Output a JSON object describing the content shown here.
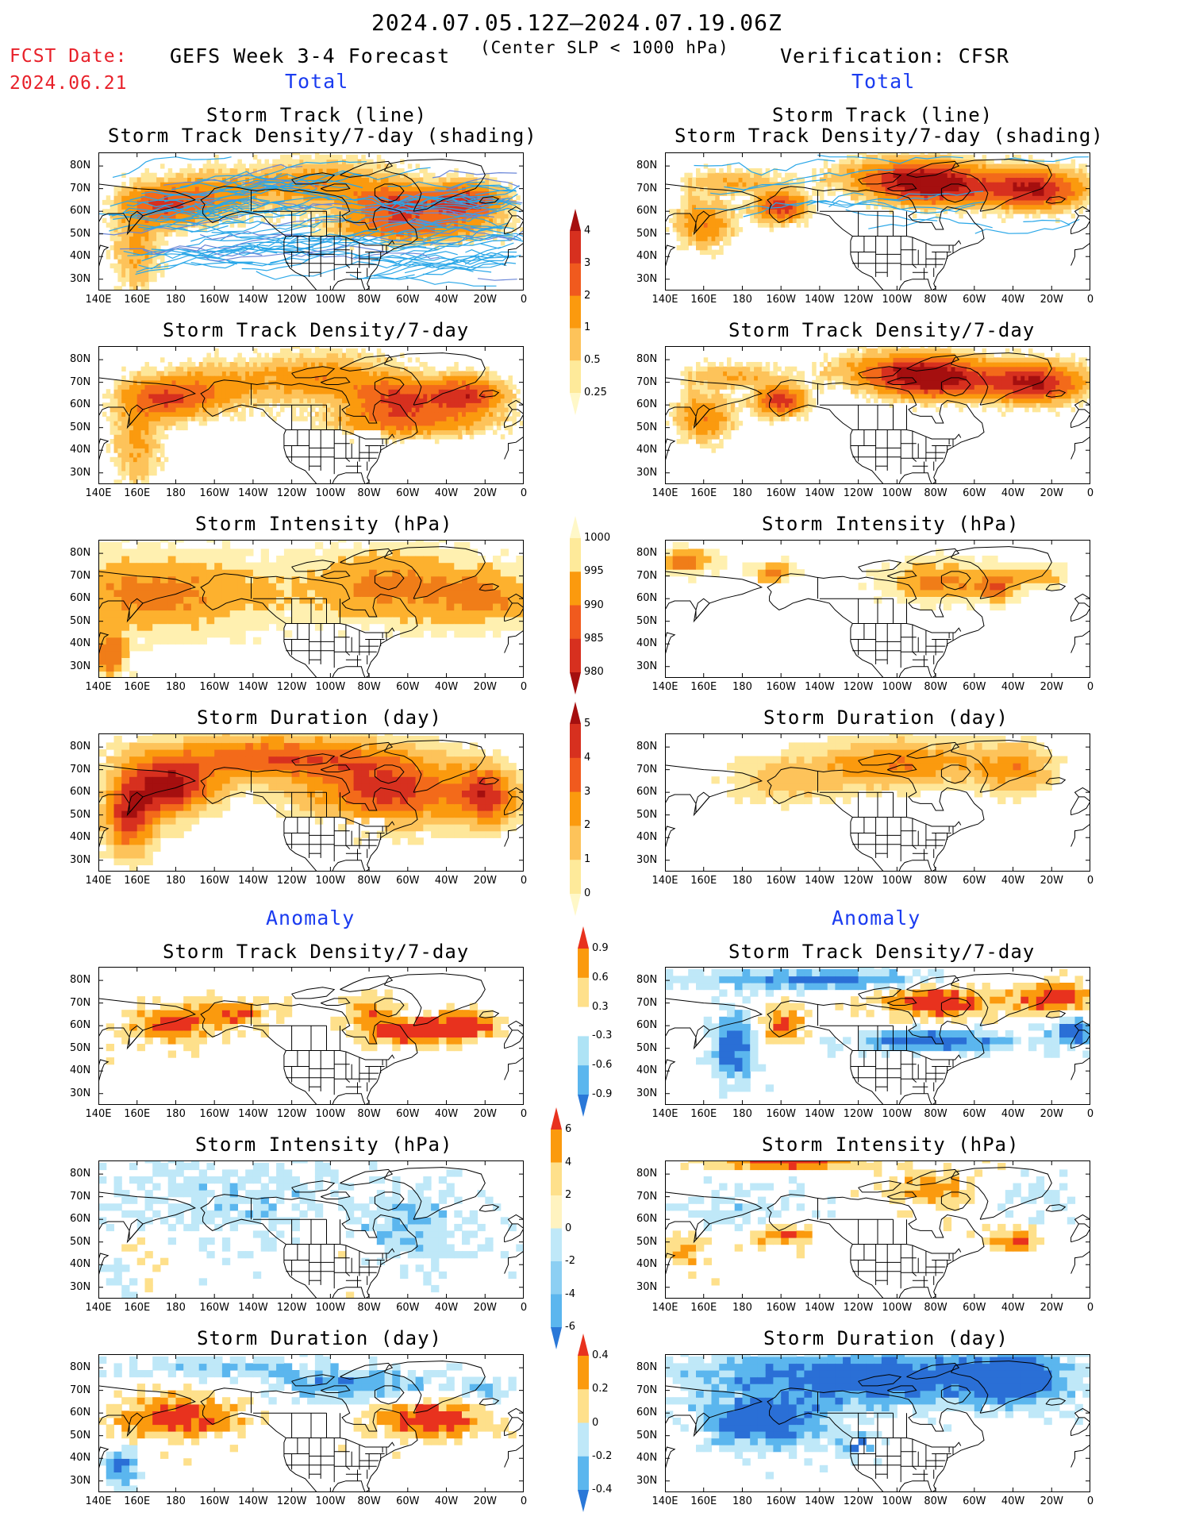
{
  "header": {
    "fcst_label": "FCST Date:",
    "fcst_date": "2024.06.21",
    "date_range": "2024.07.05.12Z–2024.07.19.06Z",
    "criterion": "(Center SLP < 1000 hPa)",
    "forecast_title": "GEFS Week 3-4 Forecast",
    "verification_title": "Verification: CFSR",
    "total_left": "Total",
    "total_right": "Total",
    "anomaly_left": "Anomaly",
    "anomaly_right": "Anomaly"
  },
  "panel_titles": {
    "track_line": "Storm Track (line)",
    "track_shading": "Storm Track Density/7-day (shading)",
    "density": "Storm Track Density/7-day",
    "intensity": "Storm Intensity (hPa)",
    "duration": "Storm Duration (day)"
  },
  "axes": {
    "lat_labels": [
      "80N",
      "70N",
      "60N",
      "50N",
      "40N",
      "30N"
    ],
    "lon_labels": [
      "140E",
      "160E",
      "180",
      "160W",
      "140W",
      "120W",
      "100W",
      "80W",
      "60W",
      "40W",
      "20W",
      "0"
    ]
  },
  "colorbars": {
    "density": {
      "labels": [
        "4",
        "3",
        "2",
        "1",
        "0.5",
        "0.25"
      ],
      "colors": [
        "#a50f0f",
        "#d7301f",
        "#f05a1e",
        "#fb9a0e",
        "#fdc35a",
        "#feea9a",
        "#fff8c8"
      ]
    },
    "intensity": {
      "labels": [
        "1000",
        "995",
        "990",
        "985",
        "980"
      ],
      "colors": [
        "#fff8c8",
        "#feea9a",
        "#fb9a0e",
        "#f05a1e",
        "#d7301f",
        "#a50f0f"
      ]
    },
    "duration": {
      "labels": [
        "5",
        "4",
        "3",
        "2",
        "1",
        "0"
      ],
      "colors": [
        "#a50f0f",
        "#d7301f",
        "#f05a1e",
        "#fb9a0e",
        "#fdc35a",
        "#feea9a",
        "#fff8c8"
      ]
    },
    "anom_density": {
      "labels": [
        "0.9",
        "0.6",
        "0.3",
        "-0.3",
        "-0.6",
        "-0.9"
      ],
      "colors": [
        "#e8321e",
        "#fb9a0e",
        "#fee08b",
        "#ffffff",
        "#aee3f5",
        "#5bb6ee",
        "#2a78d8"
      ]
    },
    "anom_intensity": {
      "labels": [
        "6",
        "4",
        "2",
        "0",
        "-2",
        "-4",
        "-6"
      ],
      "colors": [
        "#e8321e",
        "#fb9a0e",
        "#fee08b",
        "#fff3c0",
        "#bfe8f8",
        "#8ccff3",
        "#5bb6ee",
        "#2a78d8"
      ]
    },
    "anom_duration": {
      "labels": [
        "0.4",
        "0.2",
        "0",
        "-0.2",
        "-0.4"
      ],
      "colors": [
        "#e8321e",
        "#fb9a0e",
        "#fee08b",
        "#bfe8f8",
        "#5bb6ee",
        "#2a78d8"
      ]
    }
  }
}
